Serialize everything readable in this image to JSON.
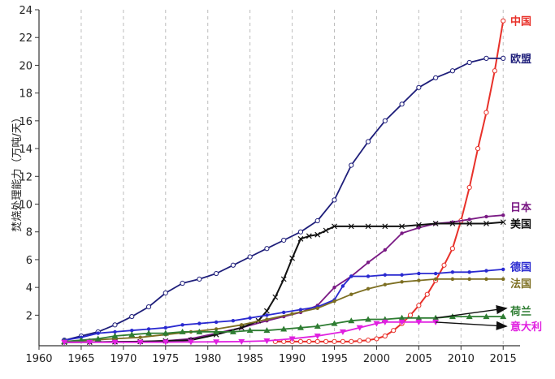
{
  "chart_data": {
    "type": "line",
    "title": "",
    "xlabel": "",
    "ylabel": "焚烧处理能力（万吨/天）",
    "xlim": [
      1960,
      2017
    ],
    "ylim": [
      -0.2,
      24
    ],
    "grid": "vertical dashed",
    "x_ticks": [
      1960,
      1965,
      1970,
      1975,
      1980,
      1985,
      1990,
      1995,
      2000,
      2005,
      2010,
      2015
    ],
    "y_ticks": [
      2,
      4,
      6,
      8,
      10,
      12,
      14,
      16,
      18,
      20,
      22,
      24
    ],
    "series": [
      {
        "name": "中国",
        "color": "#e8312a",
        "marker": "circle-open",
        "x": [
          1988,
          1989,
          1990,
          1991,
          1992,
          1993,
          1994,
          1995,
          1996,
          1997,
          1998,
          1999,
          2000,
          2001,
          2002,
          2003,
          2004,
          2005,
          2006,
          2007,
          2008,
          2009,
          2010,
          2011,
          2012,
          2013,
          2014,
          2015
        ],
        "y": [
          0.1,
          0.1,
          0.1,
          0.1,
          0.1,
          0.1,
          0.1,
          0.1,
          0.1,
          0.1,
          0.15,
          0.2,
          0.3,
          0.5,
          0.9,
          1.4,
          2.0,
          2.7,
          3.5,
          4.5,
          5.6,
          6.8,
          8.8,
          11.2,
          14.0,
          16.6,
          19.6,
          23.2
        ],
        "label_y": 23.2
      },
      {
        "name": "欧盟",
        "color": "#1e1e7a",
        "marker": "circle-open",
        "x": [
          1963,
          1965,
          1967,
          1969,
          1971,
          1973,
          1975,
          1977,
          1979,
          1981,
          1983,
          1985,
          1987,
          1989,
          1991,
          1993,
          1995,
          1997,
          1999,
          2001,
          2003,
          2005,
          2007,
          2009,
          2011,
          2013,
          2015
        ],
        "y": [
          0.2,
          0.5,
          0.8,
          1.3,
          1.9,
          2.6,
          3.6,
          4.3,
          4.6,
          5.0,
          5.6,
          6.2,
          6.8,
          7.4,
          8.0,
          8.8,
          10.3,
          12.8,
          14.5,
          16.0,
          17.2,
          18.4,
          19.1,
          19.6,
          20.2,
          20.5,
          20.5
        ],
        "label_y": 20.5
      },
      {
        "name": "日本",
        "color": "#7a1a84",
        "marker": "dot",
        "x": [
          1963,
          1966,
          1969,
          1972,
          1975,
          1978,
          1981,
          1984,
          1987,
          1989,
          1991,
          1993,
          1995,
          1997,
          1999,
          2001,
          2003,
          2005,
          2007,
          2009,
          2011,
          2013,
          2015
        ],
        "y": [
          0.05,
          0.06,
          0.08,
          0.1,
          0.15,
          0.3,
          0.7,
          1.1,
          1.6,
          1.9,
          2.2,
          2.7,
          4.0,
          4.8,
          5.8,
          6.7,
          7.9,
          8.3,
          8.6,
          8.7,
          8.9,
          9.1,
          9.2
        ],
        "label_y": 9.8
      },
      {
        "name": "美国",
        "color": "#111111",
        "marker": "cross",
        "x": [
          1963,
          1966,
          1969,
          1972,
          1975,
          1978,
          1981,
          1984,
          1986,
          1987,
          1988,
          1989,
          1990,
          1991,
          1992,
          1993,
          1994,
          1995,
          1997,
          1999,
          2001,
          2003,
          2005,
          2007,
          2009,
          2011,
          2013,
          2015
        ],
        "y": [
          0.05,
          0.06,
          0.08,
          0.1,
          0.15,
          0.2,
          0.6,
          1.1,
          1.6,
          2.3,
          3.3,
          4.6,
          6.1,
          7.5,
          7.7,
          7.8,
          8.1,
          8.4,
          8.4,
          8.4,
          8.4,
          8.4,
          8.5,
          8.6,
          8.6,
          8.6,
          8.6,
          8.7
        ],
        "label_y": 8.6
      },
      {
        "name": "德国",
        "color": "#2a2ad0",
        "marker": "dot",
        "x": [
          1963,
          1965,
          1967,
          1969,
          1971,
          1973,
          1975,
          1977,
          1979,
          1981,
          1983,
          1985,
          1987,
          1989,
          1991,
          1993,
          1995,
          1996,
          1997,
          1999,
          2001,
          2003,
          2005,
          2007,
          2009,
          2011,
          2013,
          2015
        ],
        "y": [
          0.2,
          0.4,
          0.7,
          0.8,
          0.9,
          1.0,
          1.1,
          1.3,
          1.4,
          1.5,
          1.6,
          1.8,
          2.0,
          2.2,
          2.4,
          2.6,
          3.1,
          4.1,
          4.8,
          4.8,
          4.9,
          4.9,
          5.0,
          5.0,
          5.1,
          5.1,
          5.2,
          5.3
        ],
        "label_y": 5.5
      },
      {
        "name": "法国",
        "color": "#7d6f22",
        "marker": "dot",
        "x": [
          1963,
          1966,
          1969,
          1972,
          1975,
          1978,
          1981,
          1984,
          1987,
          1990,
          1993,
          1995,
          1997,
          1999,
          2001,
          2003,
          2005,
          2007,
          2009,
          2011,
          2013,
          2015
        ],
        "y": [
          0.1,
          0.2,
          0.3,
          0.4,
          0.6,
          0.8,
          1.0,
          1.3,
          1.7,
          2.1,
          2.5,
          3.0,
          3.5,
          3.9,
          4.2,
          4.4,
          4.5,
          4.6,
          4.6,
          4.6,
          4.6,
          4.6
        ],
        "label_y": 4.3
      },
      {
        "name": "荷兰",
        "color": "#2e7d32",
        "marker": "triangle-up",
        "x": [
          1963,
          1965,
          1967,
          1969,
          1971,
          1973,
          1975,
          1977,
          1979,
          1981,
          1983,
          1985,
          1987,
          1989,
          1991,
          1993,
          1995,
          1997,
          1999,
          2001,
          2003,
          2005,
          2007,
          2009,
          2011,
          2013,
          2015
        ],
        "y": [
          0.1,
          0.2,
          0.3,
          0.5,
          0.6,
          0.7,
          0.7,
          0.8,
          0.8,
          0.8,
          0.8,
          0.9,
          0.9,
          1.0,
          1.1,
          1.2,
          1.4,
          1.6,
          1.7,
          1.7,
          1.8,
          1.8,
          1.8,
          1.9,
          1.9,
          1.9,
          1.9
        ],
        "label_y": 2.3
      },
      {
        "name": "意大利",
        "color": "#e020e0",
        "marker": "triangle-down",
        "x": [
          1963,
          1966,
          1969,
          1972,
          1975,
          1978,
          1981,
          1984,
          1987,
          1990,
          1993,
          1996,
          1998,
          2000,
          2001,
          2003,
          2005,
          2007
        ],
        "y": [
          0.05,
          0.05,
          0.05,
          0.05,
          0.06,
          0.07,
          0.08,
          0.1,
          0.15,
          0.3,
          0.5,
          0.8,
          1.1,
          1.4,
          1.5,
          1.5,
          1.5,
          1.5
        ],
        "label_y": 1.2
      }
    ],
    "annotations": [
      {
        "from_x": 2007.0,
        "from_y": 1.5,
        "to_x": 2015.4,
        "to_y": 1.2,
        "color": "#111111"
      },
      {
        "from_x": 2007.0,
        "from_y": 1.8,
        "to_x": 2015.4,
        "to_y": 2.5,
        "color": "#111111"
      }
    ]
  }
}
